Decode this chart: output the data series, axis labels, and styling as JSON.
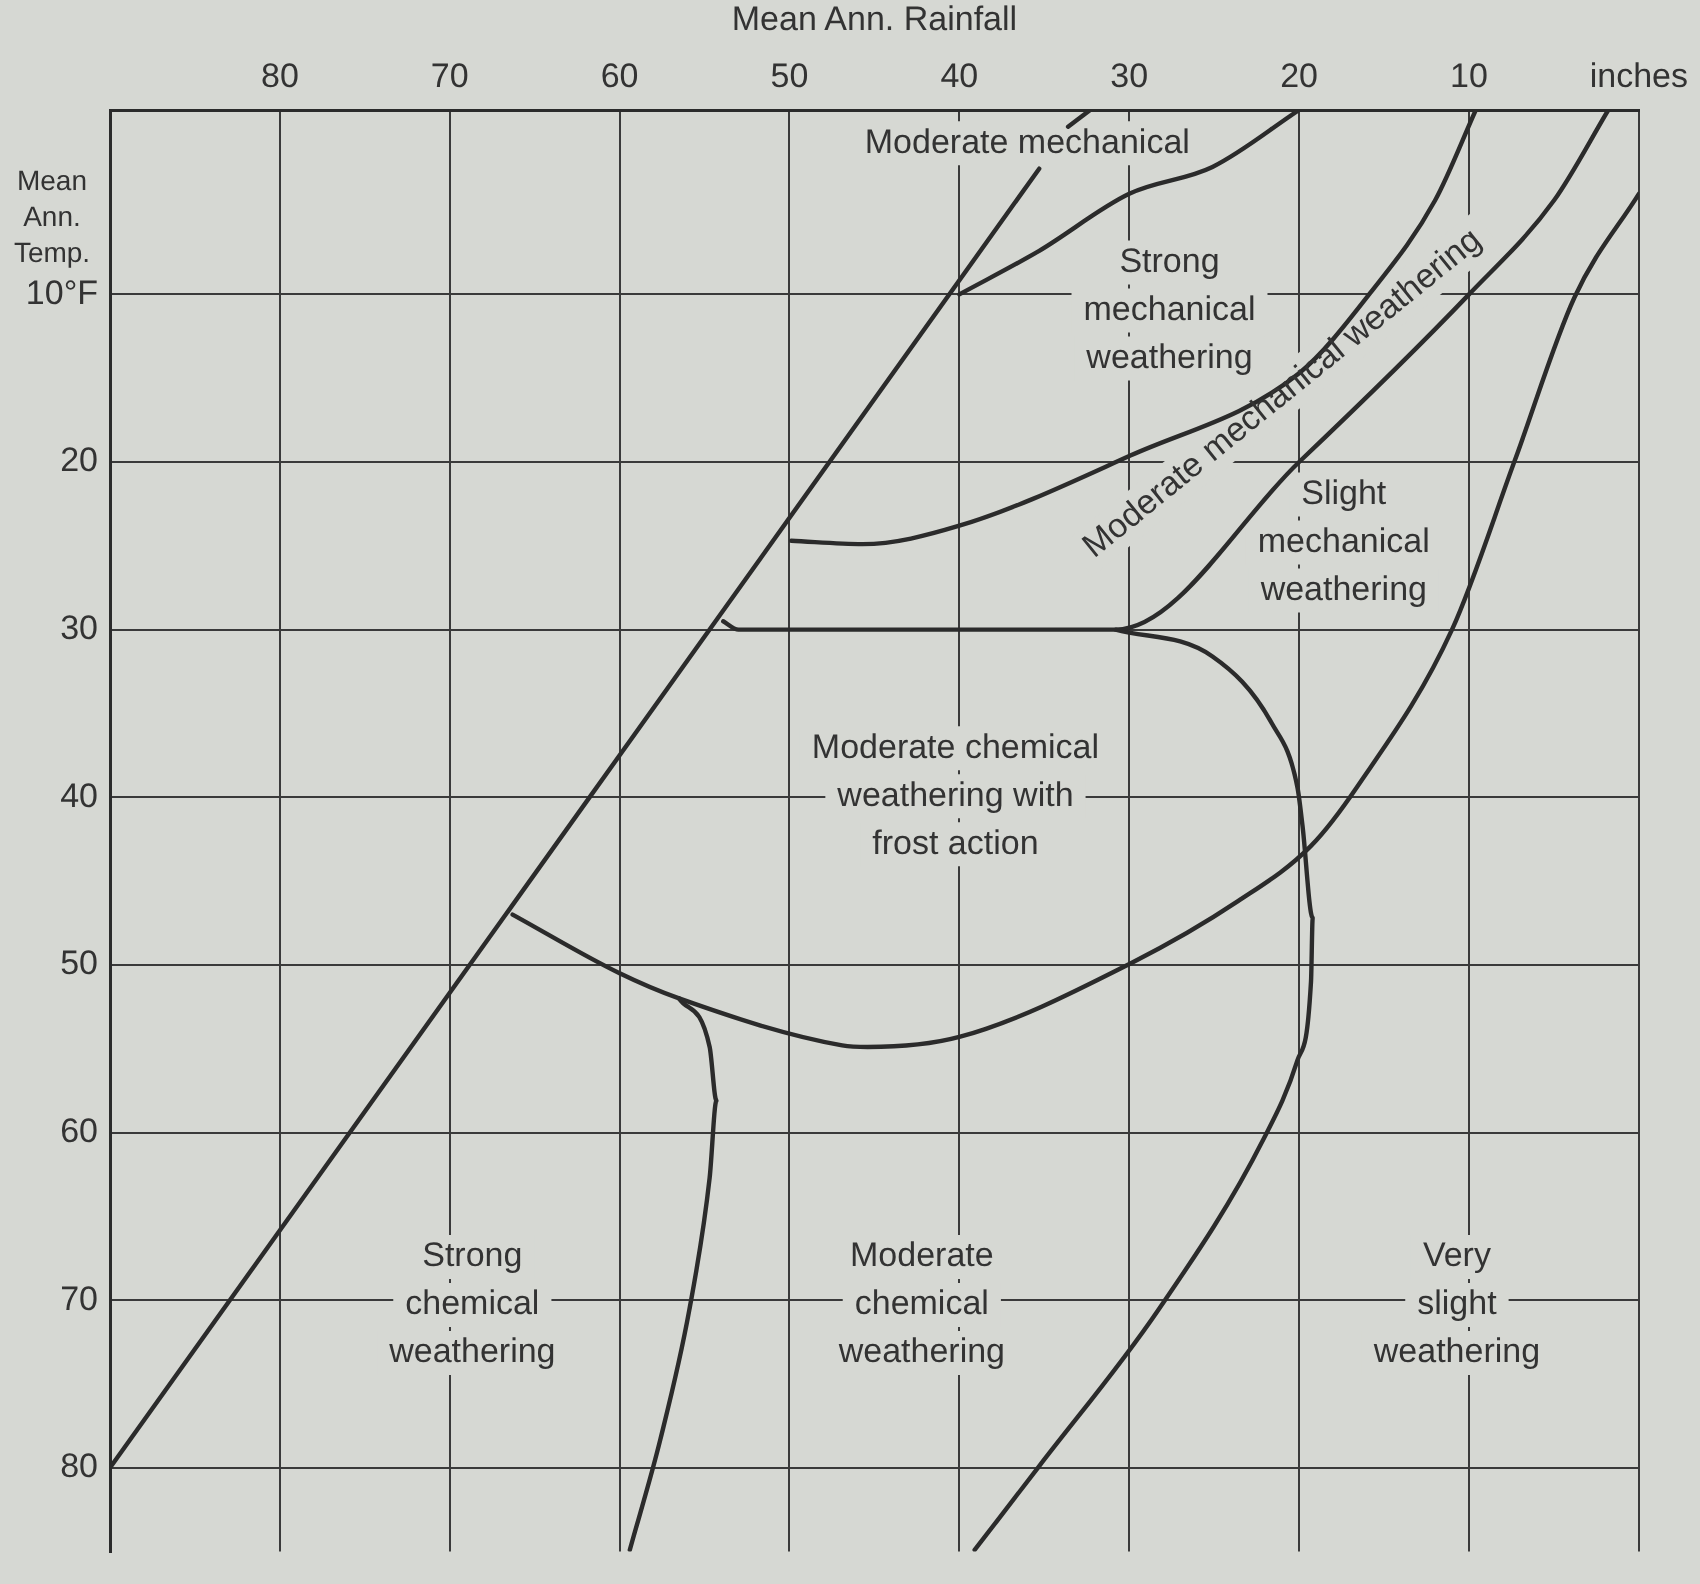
{
  "chart_data": {
    "type": "line",
    "xlabel": "Mean Ann. Rainfall",
    "ylabel": "Mean Ann. Temp.",
    "xlim": [
      90,
      0
    ],
    "xticks": [
      80,
      70,
      60,
      50,
      40,
      30,
      20,
      10,
      {
        "value": 0,
        "label": "inches"
      }
    ],
    "ylim": [
      85,
      -1
    ],
    "yticks": [
      {
        "value": 10,
        "label": "10°F"
      },
      20,
      30,
      40,
      50,
      60,
      70,
      80
    ],
    "grid": true,
    "legend": false,
    "marker": "none",
    "line_style": "solid",
    "series": [
      {
        "color": "#2b2b2b",
        "x": [
          90,
          35.3,
          34.5,
          33.6,
          32.3
        ],
        "values": [
          80,
          2.5,
          null,
          0,
          -1
        ]
      },
      {
        "color": "#2b2b2b",
        "x": [
          40,
          35.3,
          30,
          25.1,
          20
        ],
        "values": [
          10,
          7.4,
          4,
          2.4,
          -1
        ]
      },
      {
        "color": "#2b2b2b",
        "x": [
          49.9,
          45.7,
          40,
          29.9,
          20,
          15.8,
          12,
          9.6
        ],
        "values": [
          24.7,
          24.9,
          23.8,
          19.6,
          14.7,
          9.9,
          4.4,
          -1
        ]
      },
      {
        "color": "#2b2b2b",
        "x": [
          53.9,
          53,
          30.8,
          20,
          10,
          5,
          1.8
        ],
        "values": [
          29.5,
          30,
          30,
          20,
          10,
          4.4,
          -1
        ]
      },
      {
        "color": "#2b2b2b",
        "x": [
          30.8,
          25.1,
          21.6,
          20.1,
          19.8,
          19.2,
          19.3,
          20.1,
          22.1,
          28.3,
          35.3,
          39.1
        ],
        "values": [
          30,
          31.6,
          35.6,
          39.4,
          41.7,
          47.2,
          51,
          55.7,
          60.4,
          70.6,
          79.9,
          84.9
        ]
      },
      {
        "color": "#2b2b2b",
        "x": [
          66.3,
          60,
          56.5,
          46.9,
          45.4,
          40,
          29.9,
          23.6,
          19.3,
          16.6,
          11,
          7.3,
          3.8,
          0
        ],
        "values": [
          47,
          50.5,
          52,
          54.8,
          54.9,
          54.3,
          49.9,
          46.2,
          42.9,
          39.4,
          30,
          19.9,
          10.2,
          4
        ]
      },
      {
        "color": "#2b2b2b",
        "x": [
          56.5,
          54.7,
          54.3,
          54.7,
          55.9,
          57.6,
          59.4
        ],
        "values": [
          52,
          54.9,
          58.1,
          62.7,
          70.6,
          78.3,
          84.9
        ]
      }
    ],
    "annotations": [
      "Moderate mechanical",
      "Strong\nmechanical\nweathering",
      "Moderate mechanical weathering",
      "Slight\nmechanical\nweathering",
      "Moderate chemical\nweathering with\nfrost action",
      "Strong\nchemical\nweathering",
      "Moderate\nchemical\nweathering",
      "Very\nslight\nweathering"
    ]
  }
}
